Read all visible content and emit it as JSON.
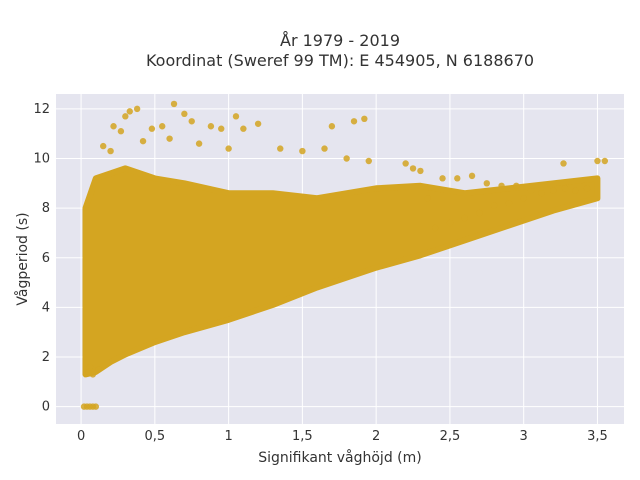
{
  "chart_data": {
    "type": "scatter",
    "title_line1": "År 1979 - 2019",
    "title_line2": "Koordinat (Sweref 99 TM): E 454905, N 6188670",
    "xlabel": "Signifikant våghöjd (m)",
    "ylabel": "Vågperiod (s)",
    "xlim": [
      -0.17,
      3.68
    ],
    "ylim": [
      -0.7,
      12.6
    ],
    "x_ticks": [
      0,
      0.5,
      1,
      1.5,
      2,
      2.5,
      3,
      3.5
    ],
    "x_tick_labels": [
      "0",
      "0,5",
      "1",
      "1,5",
      "2",
      "2,5",
      "3",
      "3,5"
    ],
    "y_ticks": [
      0,
      2,
      4,
      6,
      8,
      10,
      12
    ],
    "y_tick_labels": [
      "0",
      "2",
      "4",
      "6",
      "8",
      "10",
      "12"
    ],
    "grid": true,
    "background": "#e5e5ef",
    "point_color": "#d4a521",
    "density_envelope": {
      "x": [
        0.03,
        0.1,
        0.2,
        0.3,
        0.5,
        0.7,
        1.0,
        1.3,
        1.6,
        2.0,
        2.3,
        2.6,
        2.9,
        3.2,
        3.5
      ],
      "y_low": [
        1.3,
        1.4,
        1.8,
        2.1,
        2.6,
        3.0,
        3.5,
        4.1,
        4.8,
        5.6,
        6.1,
        6.7,
        7.3,
        7.9,
        8.4
      ],
      "y_high": [
        8.0,
        9.2,
        9.4,
        9.6,
        9.2,
        9.0,
        8.6,
        8.6,
        8.4,
        8.8,
        8.9,
        8.6,
        8.8,
        9.0,
        9.2
      ]
    },
    "points": [
      {
        "x": 0.02,
        "y": 0
      },
      {
        "x": 0.04,
        "y": 0
      },
      {
        "x": 0.06,
        "y": 0
      },
      {
        "x": 0.08,
        "y": 0
      },
      {
        "x": 0.1,
        "y": 0
      },
      {
        "x": 0.3,
        "y": 11.7
      },
      {
        "x": 0.33,
        "y": 11.9
      },
      {
        "x": 0.38,
        "y": 12.0
      },
      {
        "x": 0.63,
        "y": 12.2
      },
      {
        "x": 0.7,
        "y": 11.8
      },
      {
        "x": 0.75,
        "y": 11.5
      },
      {
        "x": 0.22,
        "y": 11.3
      },
      {
        "x": 0.48,
        "y": 11.2
      },
      {
        "x": 0.55,
        "y": 11.3
      },
      {
        "x": 0.88,
        "y": 11.3
      },
      {
        "x": 1.1,
        "y": 11.2
      },
      {
        "x": 1.05,
        "y": 11.7
      },
      {
        "x": 1.2,
        "y": 11.4
      },
      {
        "x": 1.7,
        "y": 11.3
      },
      {
        "x": 1.85,
        "y": 11.5
      },
      {
        "x": 1.92,
        "y": 11.6
      },
      {
        "x": 0.95,
        "y": 11.2
      },
      {
        "x": 0.27,
        "y": 11.1
      },
      {
        "x": 0.42,
        "y": 10.7
      },
      {
        "x": 0.6,
        "y": 10.8
      },
      {
        "x": 0.8,
        "y": 10.6
      },
      {
        "x": 1.0,
        "y": 10.4
      },
      {
        "x": 1.35,
        "y": 10.4
      },
      {
        "x": 1.5,
        "y": 10.3
      },
      {
        "x": 1.65,
        "y": 10.4
      },
      {
        "x": 0.15,
        "y": 10.5
      },
      {
        "x": 0.2,
        "y": 10.3
      },
      {
        "x": 1.8,
        "y": 10.0
      },
      {
        "x": 1.95,
        "y": 9.9
      },
      {
        "x": 2.2,
        "y": 9.8
      },
      {
        "x": 2.25,
        "y": 9.6
      },
      {
        "x": 2.3,
        "y": 9.5
      },
      {
        "x": 2.45,
        "y": 9.2
      },
      {
        "x": 2.55,
        "y": 9.2
      },
      {
        "x": 2.65,
        "y": 9.3
      },
      {
        "x": 2.75,
        "y": 9.0
      },
      {
        "x": 2.85,
        "y": 8.9
      },
      {
        "x": 2.95,
        "y": 8.9
      },
      {
        "x": 3.05,
        "y": 8.7
      },
      {
        "x": 3.12,
        "y": 8.6
      },
      {
        "x": 3.2,
        "y": 8.7
      },
      {
        "x": 3.28,
        "y": 8.8
      },
      {
        "x": 3.35,
        "y": 8.7
      },
      {
        "x": 3.43,
        "y": 8.8
      },
      {
        "x": 3.27,
        "y": 9.8
      },
      {
        "x": 3.5,
        "y": 9.9
      },
      {
        "x": 3.55,
        "y": 9.9
      },
      {
        "x": 2.9,
        "y": 8.2
      },
      {
        "x": 3.0,
        "y": 8.4
      },
      {
        "x": 2.8,
        "y": 8.1
      },
      {
        "x": 2.7,
        "y": 7.8
      },
      {
        "x": 2.6,
        "y": 7.6
      },
      {
        "x": 2.5,
        "y": 7.4
      },
      {
        "x": 2.4,
        "y": 7.2
      },
      {
        "x": 2.35,
        "y": 8.4
      },
      {
        "x": 0.05,
        "y": 1.4
      },
      {
        "x": 0.06,
        "y": 1.6
      },
      {
        "x": 0.08,
        "y": 1.3
      },
      {
        "x": 0.12,
        "y": 1.5
      }
    ]
  }
}
